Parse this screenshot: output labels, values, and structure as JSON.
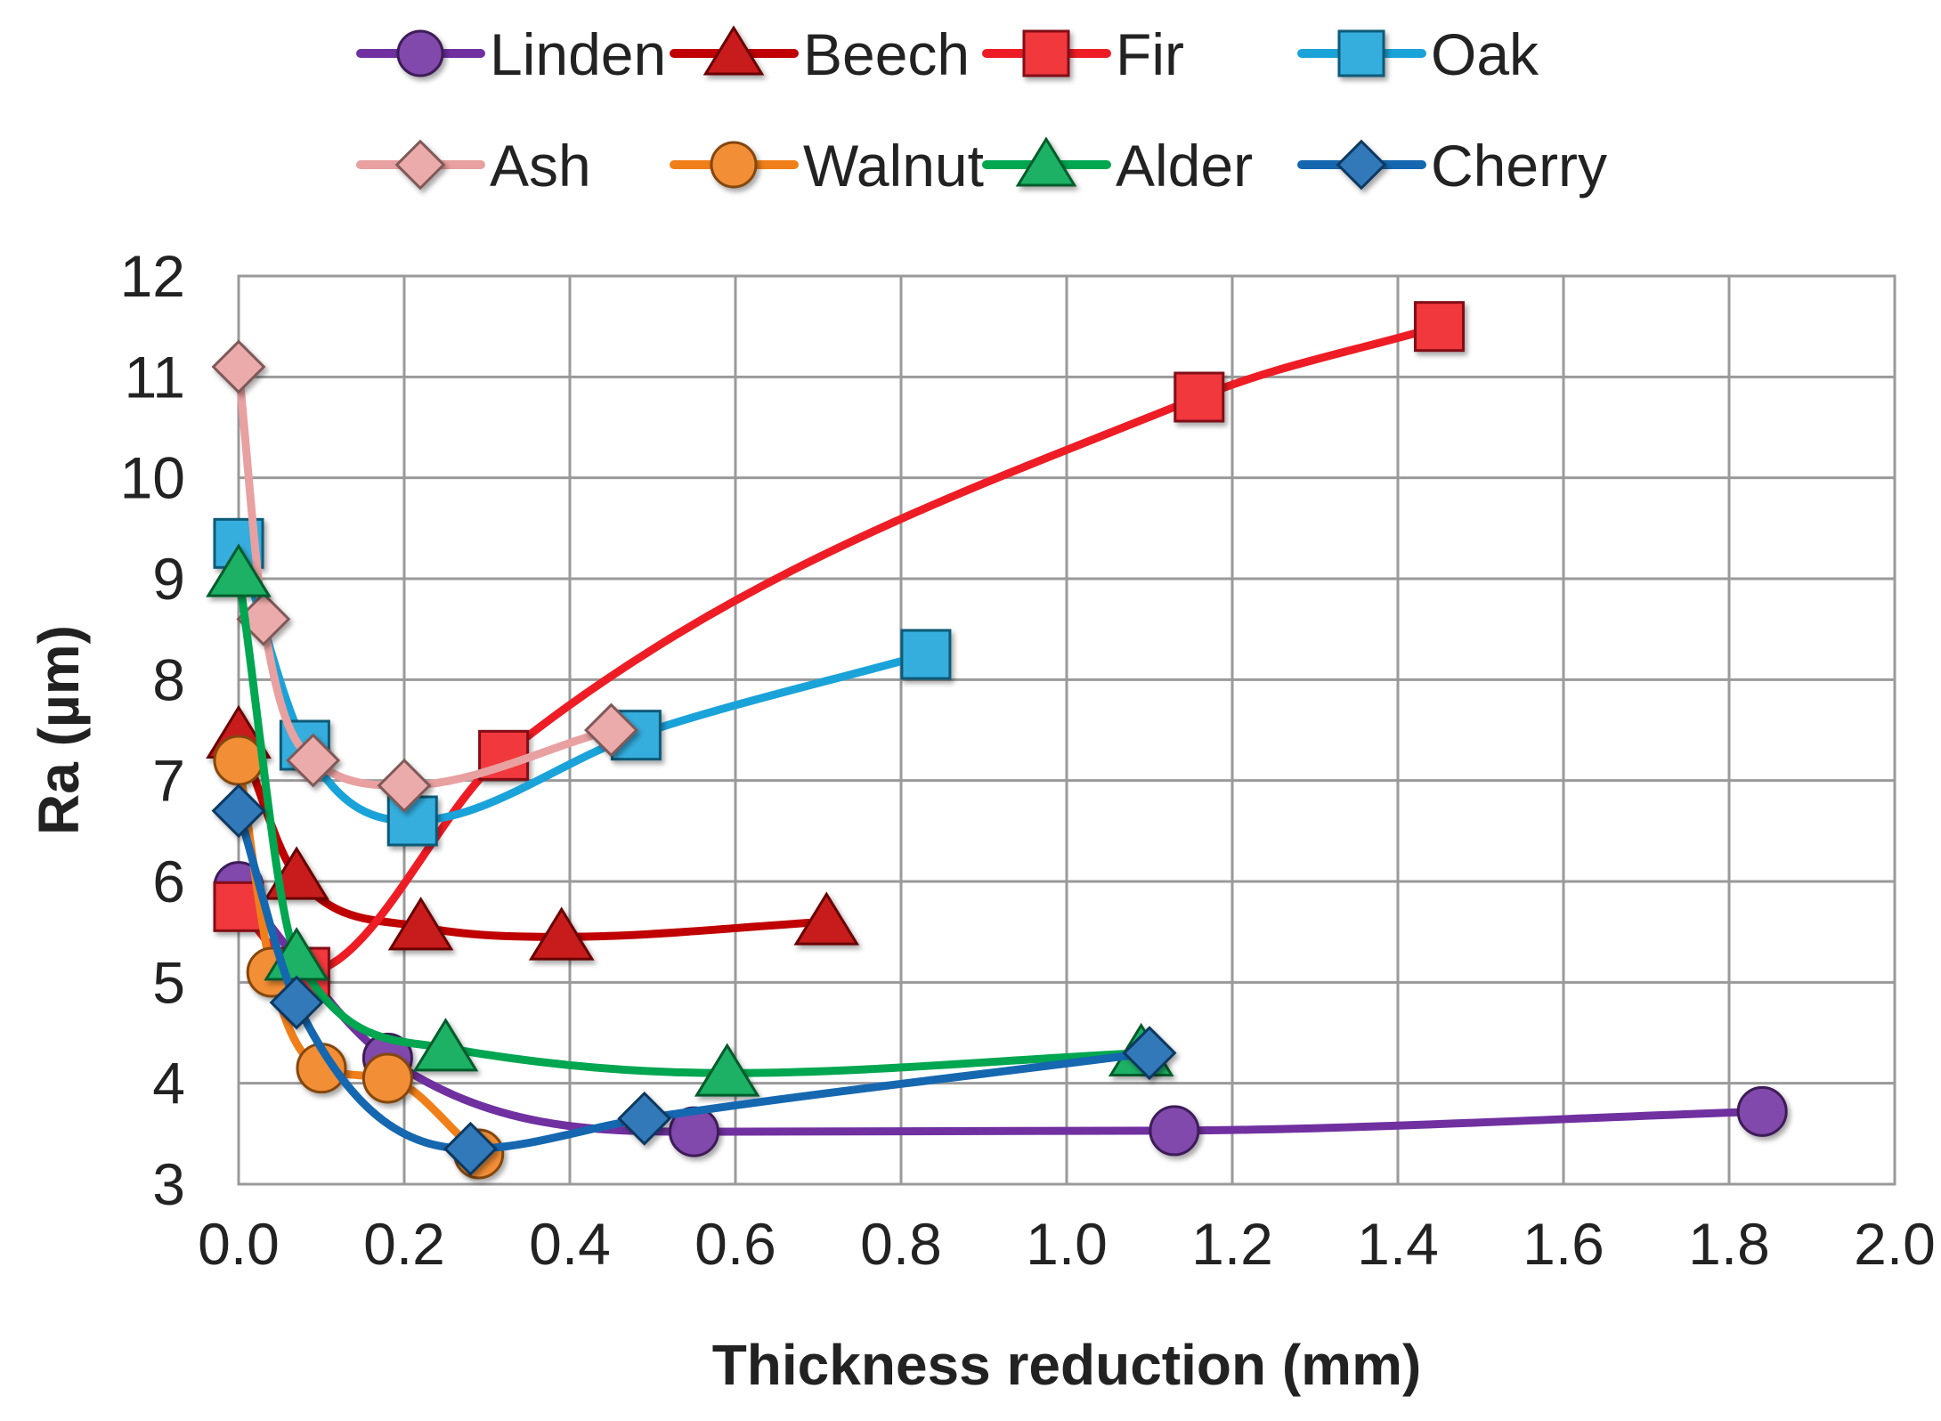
{
  "chart_data": {
    "type": "line",
    "title": "",
    "xlabel": "Thickness reduction (mm)",
    "ylabel": "Ra (µm)",
    "xlim": [
      0.0,
      2.0
    ],
    "ylim": [
      3,
      12
    ],
    "xticks": [
      "0.0",
      "0.2",
      "0.4",
      "0.6",
      "0.8",
      "1.0",
      "1.2",
      "1.4",
      "1.6",
      "1.8",
      "2.0"
    ],
    "yticks": [
      "3",
      "4",
      "5",
      "6",
      "7",
      "8",
      "9",
      "10",
      "11",
      "12"
    ],
    "grid": true,
    "legend_position": "top",
    "series": [
      {
        "name": "Linden",
        "color": "#7030a0",
        "marker": "circle",
        "x": [
          0.0,
          0.18,
          0.55,
          1.13,
          1.84
        ],
        "y": [
          5.95,
          4.25,
          3.52,
          3.53,
          3.72
        ]
      },
      {
        "name": "Beech",
        "color": "#c00000",
        "marker": "triangle",
        "x": [
          0.0,
          0.07,
          0.22,
          0.39,
          0.71
        ],
        "y": [
          7.45,
          6.05,
          5.55,
          5.45,
          5.6
        ]
      },
      {
        "name": "Fir",
        "color": "#ee1c24",
        "marker": "square",
        "x": [
          0.0,
          0.08,
          0.32,
          1.16,
          1.45
        ],
        "y": [
          5.75,
          5.1,
          7.25,
          10.8,
          11.5
        ]
      },
      {
        "name": "Oak",
        "color": "#1aa3d9",
        "marker": "square",
        "x": [
          0.0,
          0.08,
          0.21,
          0.48,
          0.83
        ],
        "y": [
          9.35,
          7.35,
          6.6,
          7.45,
          8.25
        ]
      },
      {
        "name": "Ash",
        "color": "#e8a0a0",
        "marker": "diamond",
        "x": [
          0.0,
          0.03,
          0.09,
          0.2,
          0.45
        ],
        "y": [
          11.1,
          8.6,
          7.2,
          6.95,
          7.5
        ]
      },
      {
        "name": "Walnut",
        "color": "#f07f1a",
        "marker": "circle",
        "x": [
          0.0,
          0.04,
          0.1,
          0.18,
          0.29
        ],
        "y": [
          7.2,
          5.1,
          4.15,
          4.05,
          3.3
        ]
      },
      {
        "name": "Alder",
        "color": "#00a650",
        "marker": "triangle",
        "x": [
          0.0,
          0.07,
          0.25,
          0.59,
          1.09
        ],
        "y": [
          9.05,
          5.25,
          4.35,
          4.1,
          4.3
        ]
      },
      {
        "name": "Cherry",
        "color": "#1567b0",
        "marker": "diamond",
        "x": [
          0.0,
          0.07,
          0.28,
          0.49,
          1.1
        ],
        "y": [
          6.7,
          4.8,
          3.35,
          3.65,
          4.3
        ]
      }
    ]
  }
}
